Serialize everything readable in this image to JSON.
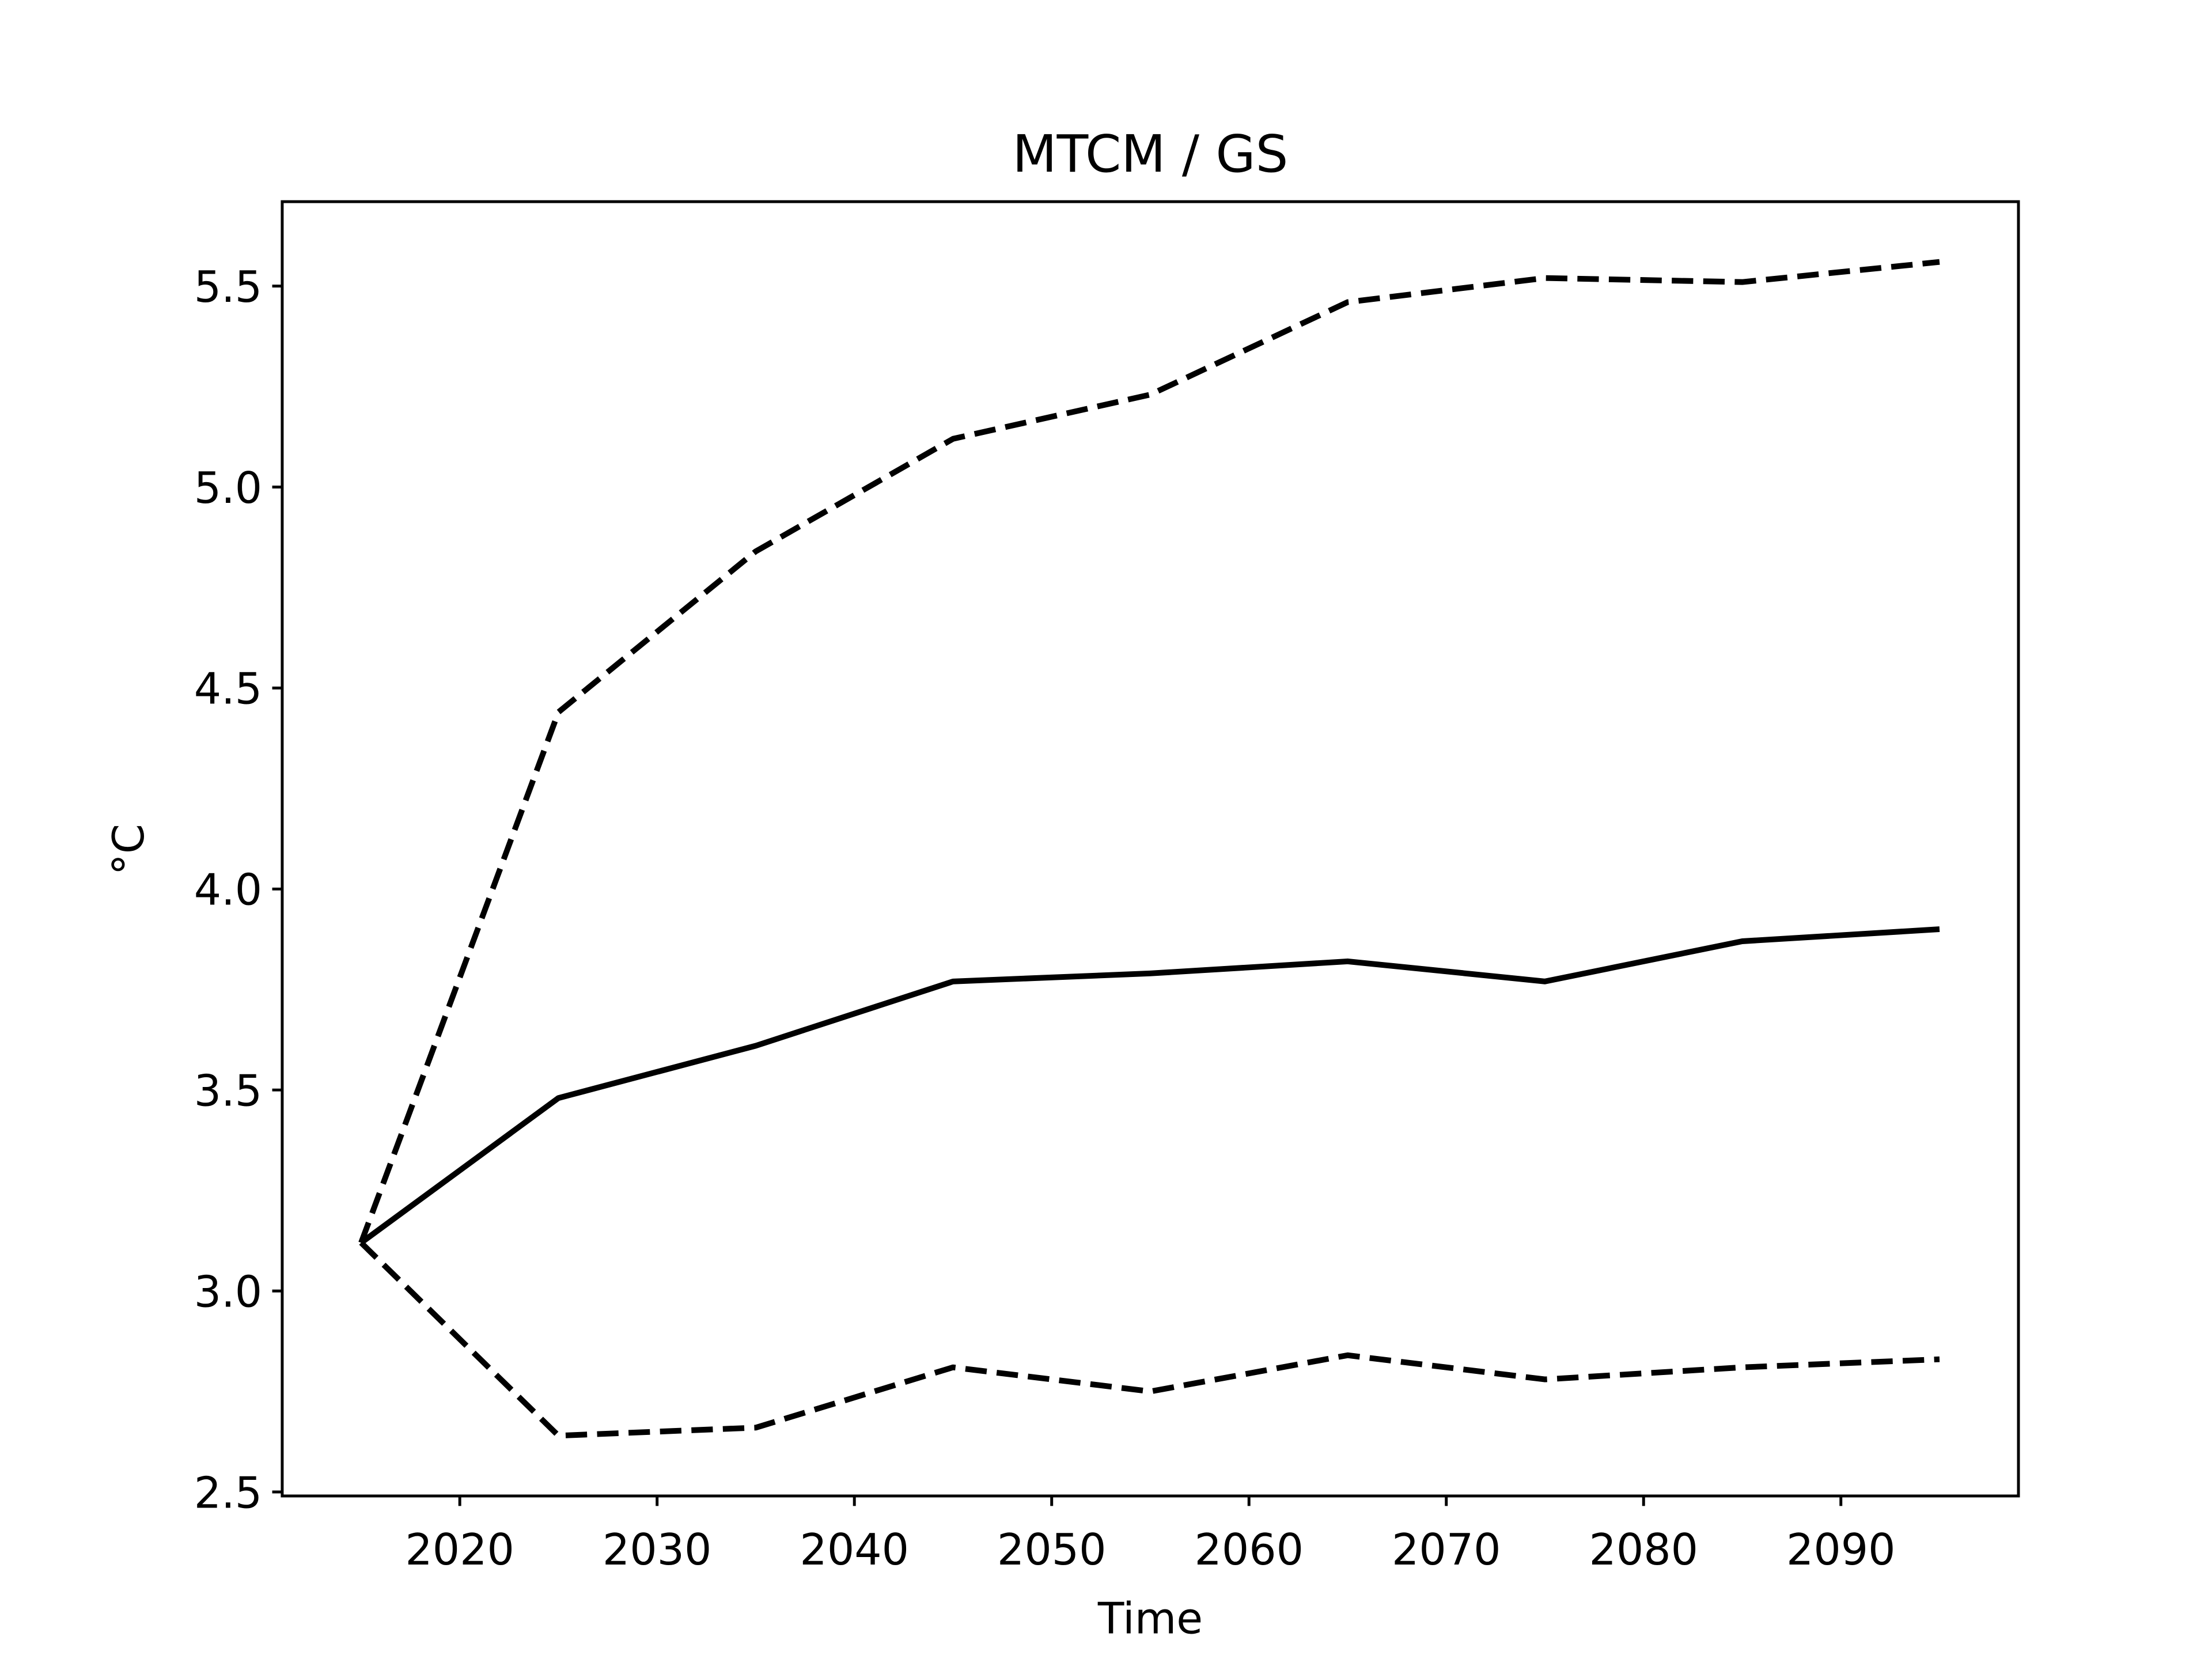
{
  "chart_data": {
    "type": "line",
    "title": "MTCM / GS",
    "xlabel": "Time",
    "ylabel": "°C",
    "x": [
      2015,
      2025,
      2035,
      2045,
      2055,
      2065,
      2075,
      2085,
      2095
    ],
    "series": [
      {
        "color": "#000000",
        "dash": "solid",
        "values": [
          3.12,
          3.48,
          3.61,
          3.77,
          3.79,
          3.82,
          3.77,
          3.87,
          3.9
        ]
      },
      {
        "color": "#000000",
        "dash": "dashed",
        "values": [
          3.12,
          4.44,
          4.84,
          5.12,
          5.23,
          5.46,
          5.52,
          5.51,
          5.56
        ]
      },
      {
        "color": "#000000",
        "dash": "dashed",
        "values": [
          3.12,
          2.64,
          2.66,
          2.81,
          2.75,
          2.84,
          2.78,
          2.81,
          2.83
        ]
      }
    ],
    "xlim": [
      2011,
      2099
    ],
    "ylim": [
      2.49,
      5.71
    ],
    "xticks": [
      2020,
      2030,
      2040,
      2050,
      2060,
      2070,
      2080,
      2090
    ],
    "yticks": [
      2.5,
      {
        "value": 3,
        "label": "3.0"
      },
      3.5,
      {
        "value": 4,
        "label": "4.0"
      },
      4.5,
      {
        "value": 5,
        "label": "5.0"
      },
      5.5
    ],
    "grid": false
  }
}
